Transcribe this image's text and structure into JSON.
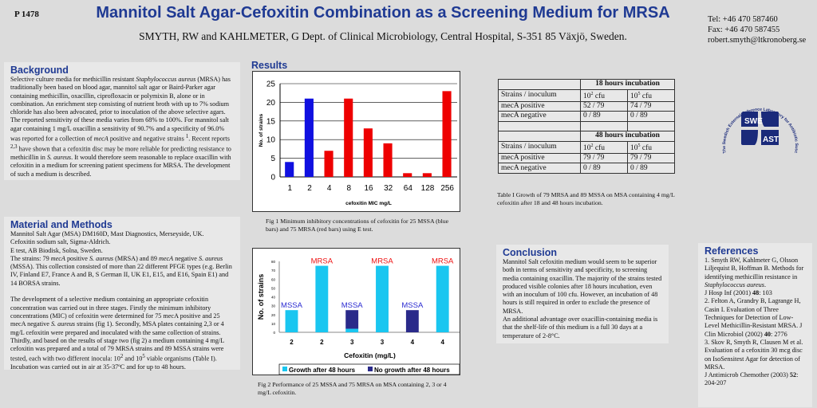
{
  "header": {
    "poster_id": "P 1478",
    "title": "Mannitol Salt Agar-Cefoxitin Combination as a Screening Medium for MRSA",
    "authors": "SMYTH, RW and KAHLMETER, G  Dept. of Clinical Microbiology, Central Hospital, S-351 85 Växjö, Sweden.",
    "contact": [
      "Tel: +46 470 587460",
      "Fax: +46 470 587455",
      "robert.smyth@ltkronoberg.se"
    ]
  },
  "background": {
    "heading": "Background",
    "html": "Selective culture media for methicillin resistant <i>Staphylococcus aureus</i> (MRSA) has traditionally been based on blood agar, mannitol salt agar or Baird-Parker agar containing methicillin, oxacillin, ciprofloxacin or polymixin B, alone or in combination.  An enrichment step consisting of nutrient broth with up to 7% sodium chloride has also been advocated, prior to inoculation of the above selective agars. The reported sensitivity of these media varies from 68% to 100%. For mannitol salt agar containing 1 mg/L oxacillin a sensitivity of 90.7% and a specificity of 96.0% was reported for a collection of <i>mecA</i> positive and negative strains <sup>1</sup>. Recent reports <sup>2,3</sup> have shown that a cefoxitin disc may be more reliable for predicting resistance to methicillin in <i>S. aureus</i>. It would therefore seem reasonable to replace oxacillin with cefoxitin in a medium for screening patient specimens for MRSA. The development of such a medium is described."
  },
  "methods": {
    "heading": "Material and Methods",
    "html": "Mannitol Salt Agar (MSA) DM160D, Mast Diagnostics, Merseyside, UK.<br>Cefoxitin sodium salt, Sigma-Aldrich.<br>E test, AB Biodisk, Solna, Sweden.<br>The strains: 79 <i>mecA</i> positive <i>S. aureus</i> (MRSA) and 89 <i>mecA</i> negative <i>S. aureus</i> (MSSA). This collection consisted of more than 22 different PFGE types (e.g. Berlin IV, Finland E7, France A and B, S German II, UK E1, E15, and E16, Spain E1) and 14 BORSA strains.<br><br>The development of a selective medium containing an appropriate cefoxitin concentration was carried out in three stages. Firstly the minimum inhibitory concentrations (MIC) of cefoxitin were determined for 75 mecA positive and 25 mecA negative <i>S. aureus</i> strains (fig 1). Secondly, MSA plates containing 2,3 or 4 mg/L cefoxitin were prepared and inoculated with the same collection of strains. Thirdly, and based on the results of stage two (fig 2) a medium containing 4 mg/L cefoxitin was prepared and a total of 79 MRSA strains and 89 MSSA strains were tested, each with two different inocula: 10<sup>2</sup> and 10<sup>5</sup> viable organisms (Table I). Incubation was carried out in air at 35-37ºC and for up to 48 hours."
  },
  "results": {
    "heading": "Results",
    "fig1_caption": "Fig 1 Minimum inhibitory concentrations of cefoxitin for 25 MSSA (blue bars) and 75 MRSA (red bars) using E test.",
    "fig2_caption": "Fig 2 Performance of 25 MSSA and 75 MRSA on MSA containing 2, 3 or 4 mg/L cefoxitin.",
    "table_caption": "Table I Growth of 79 MRSA and 89 MSSA on MSA containing 4 mg/L cefoxitin after 18 and 48 hours incubation."
  },
  "table": {
    "h18": "18 hours incubation",
    "h48": "48 hours incubation",
    "col0": "Strains / inoculum",
    "c1": "10",
    "c1sup": "2",
    "c2": "10",
    "c2sup": "5",
    "unit": " cfu",
    "rows18": [
      [
        "mecA positive",
        "52 / 79",
        "74 / 79"
      ],
      [
        "mecA negative",
        "0 / 89",
        "0 / 89"
      ]
    ],
    "rows48": [
      [
        "mecA positive",
        "79 / 79",
        "79 / 79"
      ],
      [
        "mecA negative",
        "0 / 89",
        "0 / 89"
      ]
    ]
  },
  "logo": {
    "arc_text": "The Swedish External Reference Laboratory for Antibiotic Susceptibility Testing",
    "tl": "SWE",
    "br": "AST",
    "color": "#1a2a7a"
  },
  "conclusion": {
    "heading": "Conclusion",
    "html": "Mannitol Salt cefoxitin medium would seem to be superior both in terms of sensitivity and specificity, to screening media containing oxacillin. The majority of the strains tested produced visible colonies after 18 hours incubation, even with an inoculum of 100 cfu. However, an incubation of 48 hours is still required in order to exclude the presence of MRSA.<br>An additional advantage over oxacillin-containing media is that the shelf-life of this medium is a full 30 days at a temperature of 2-8°C."
  },
  "references": {
    "heading": "References",
    "html": "1. Smyth RW, Kahlmeter G, Olsson Liljequist B, Hoffman B. Methods for identifying methicillin resistance in <i>Staphylococcus aureus</i>.<br>J Hosp Inf (2001) <b>48</b>: 103<br>2. Felton A, Grandry B, Lagrange H, Casin I. Evaluation of Three Techniques for Detection of Low-Level Methicillin-Resistant MRSA. J Clin Microbiol (2002) <b>40</b>: 2776<br>3. Skov R, Smyth R, Clausen M et al. Evaluation of a cefoxitin 30 mcg disc on IsoSensitest Agar for detection of MRSA.<br>J Antimicrob Chemother (2003) <b>52</b>: 204-207"
  },
  "chart_data": [
    {
      "type": "bar",
      "title": "",
      "xlabel": "cefoxitin MIC mg/L",
      "ylabel": "No. of strains",
      "categories": [
        "1",
        "2",
        "4",
        "8",
        "16",
        "32",
        "64",
        "128",
        "256"
      ],
      "values": [
        4,
        21,
        7,
        21,
        13,
        9,
        1,
        1,
        23
      ],
      "bar_colors": [
        "#1010e0",
        "#1010e0",
        "#ee0000",
        "#ee0000",
        "#ee0000",
        "#ee0000",
        "#ee0000",
        "#ee0000",
        "#ee0000"
      ],
      "ylim": [
        0,
        25
      ],
      "yticks": [
        0,
        5,
        10,
        15,
        20,
        25
      ],
      "grid": true
    },
    {
      "type": "bar",
      "stacked": true,
      "title": "",
      "xlabel": "Cefoxitin (mg/L)",
      "ylabel": "No. of strains",
      "categories": [
        "2",
        "2",
        "3",
        "3",
        "4",
        "4"
      ],
      "group_labels": [
        "MSSA",
        "MRSA",
        "MSSA",
        "MRSA",
        "MSSA",
        "MRSA"
      ],
      "group_label_colors": {
        "MSSA": "#2a2ad0",
        "MRSA": "#ee1111"
      },
      "series": [
        {
          "name": "Growth after 48 hours",
          "color": "#19c6f0",
          "values": [
            25,
            75,
            4,
            75,
            0,
            75
          ]
        },
        {
          "name": "No growth after 48 hours",
          "color": "#2a2a8a",
          "values": [
            0,
            0,
            21,
            0,
            25,
            0
          ]
        }
      ],
      "ylim": [
        0,
        80
      ],
      "yticks": [
        0,
        10,
        20,
        30,
        40,
        50,
        60,
        70,
        80
      ],
      "legend": "bottom",
      "grid": false
    }
  ]
}
